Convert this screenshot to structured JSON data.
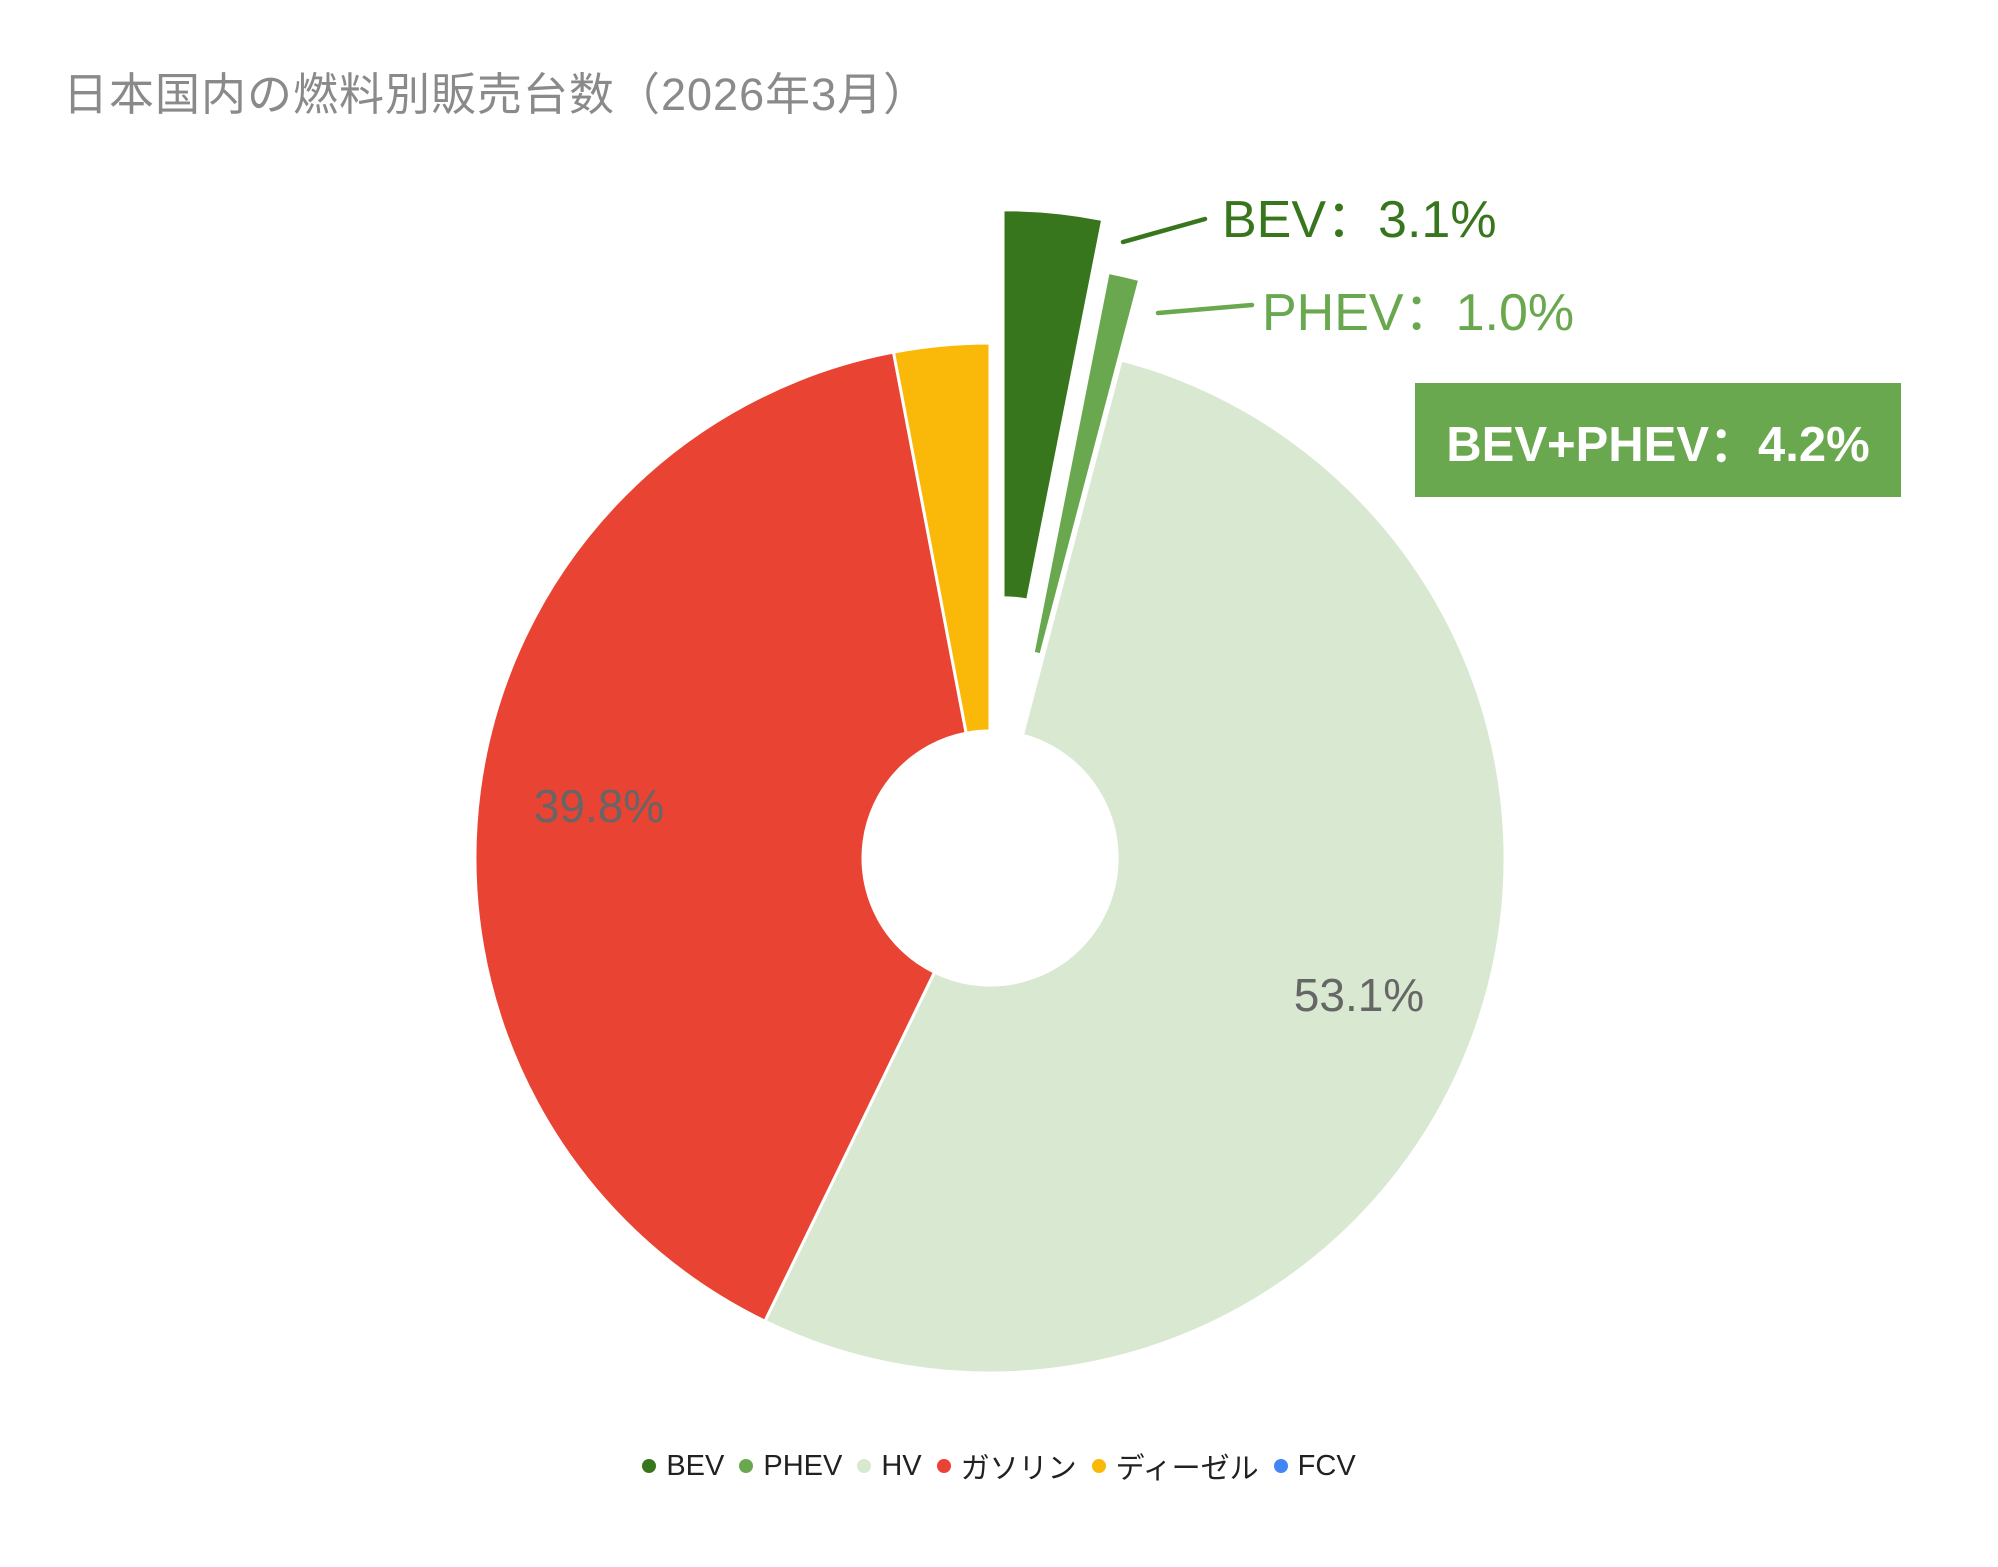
{
  "title": "日本国内の燃料別販売台数（2026年3月）",
  "chart_data": {
    "type": "pie",
    "subtype": "donut",
    "title": "日本国内の燃料別販売台数（2026年3月）",
    "unit": "%",
    "direction": "clockwise",
    "start_angle_deg": 0,
    "hole_ratio": 0.247,
    "grid": false,
    "legend_position": "bottom",
    "slices": [
      {
        "label": "BEV",
        "value": 3.1,
        "color": "#38761d",
        "explode_ratio": 0.26,
        "callout_text": "BEV：3.1%"
      },
      {
        "label": "PHEV",
        "value": 1.0,
        "color": "#6aa84f",
        "explode_ratio": 0.16,
        "callout_text": "PHEV：1.0%"
      },
      {
        "label": "HV",
        "value": 53.1,
        "color": "#d9e8d1",
        "inner_label": "53.1%"
      },
      {
        "label": "ガソリン",
        "value": 39.8,
        "color": "#e94334",
        "inner_label": "39.8%"
      },
      {
        "label": "ディーゼル",
        "value": 3.0,
        "color": "#fab908"
      },
      {
        "label": "FCV",
        "value": 0.0,
        "color": "#4285f4"
      }
    ],
    "annotation": {
      "text": "BEV+PHEV：4.2%",
      "bg_color": "#6aa84f",
      "text_color": "#ffffff"
    }
  },
  "styles": {
    "title_color": "#8a8a8a",
    "inner_label_color": "#666666",
    "legend_text_color": "#212121",
    "slice_border_color": "#ffffff"
  }
}
